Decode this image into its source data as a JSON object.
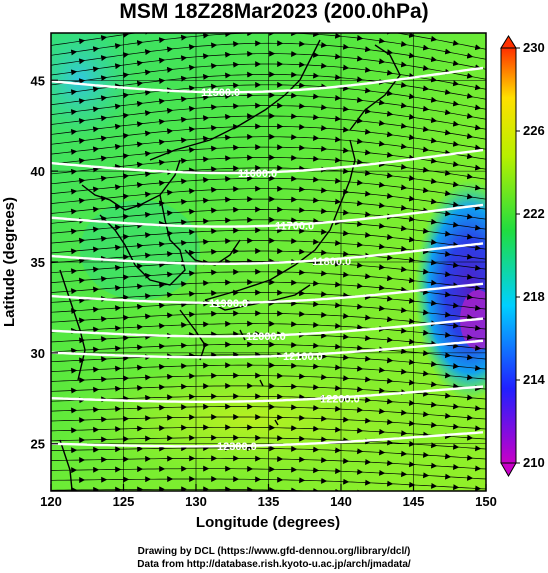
{
  "title": "MSM 18Z28Mar2023 (200.0hPa)",
  "axes": {
    "x": {
      "label": "Longitude (degrees)",
      "range": [
        120,
        150
      ],
      "ticks": [
        "120",
        "125",
        "130",
        "135",
        "140",
        "145",
        "150"
      ]
    },
    "y": {
      "label": "Latitude  (degrees)",
      "range": [
        22.4,
        47.6
      ],
      "ticks": [
        "25",
        "30",
        "35",
        "40",
        "45"
      ]
    }
  },
  "colorbar": {
    "ticks": [
      "210",
      "214",
      "218",
      "222",
      "226",
      "230"
    ],
    "range": [
      210,
      230
    ],
    "colors": [
      "#c800c8",
      "#2020ff",
      "#00d0ff",
      "#20dd40",
      "#b8f000",
      "#ffe000",
      "#ff3000"
    ]
  },
  "contours": [
    {
      "label": "11500.0",
      "lat": 45.2
    },
    {
      "label": "11600.0",
      "lat": 40.7
    },
    {
      "label": "11700.0",
      "lat": 37.7
    },
    {
      "label": "11800.0",
      "lat": 35.6
    },
    {
      "label": "11900.0",
      "lat": 33.4
    },
    {
      "label": "12000.0",
      "lat": 31.5
    },
    {
      "label": "12100.0",
      "lat": 30.3
    },
    {
      "label": "12200.0",
      "lat": 27.8
    },
    {
      "label": "12300.0",
      "lat": 25.3
    }
  ],
  "credits": [
    "Drawing by DCL (https://www.gfd-dennou.org/library/dcl/)",
    "Data from http://database.rish.kyoto-u.ac.jp/arch/jmadata/"
  ]
}
